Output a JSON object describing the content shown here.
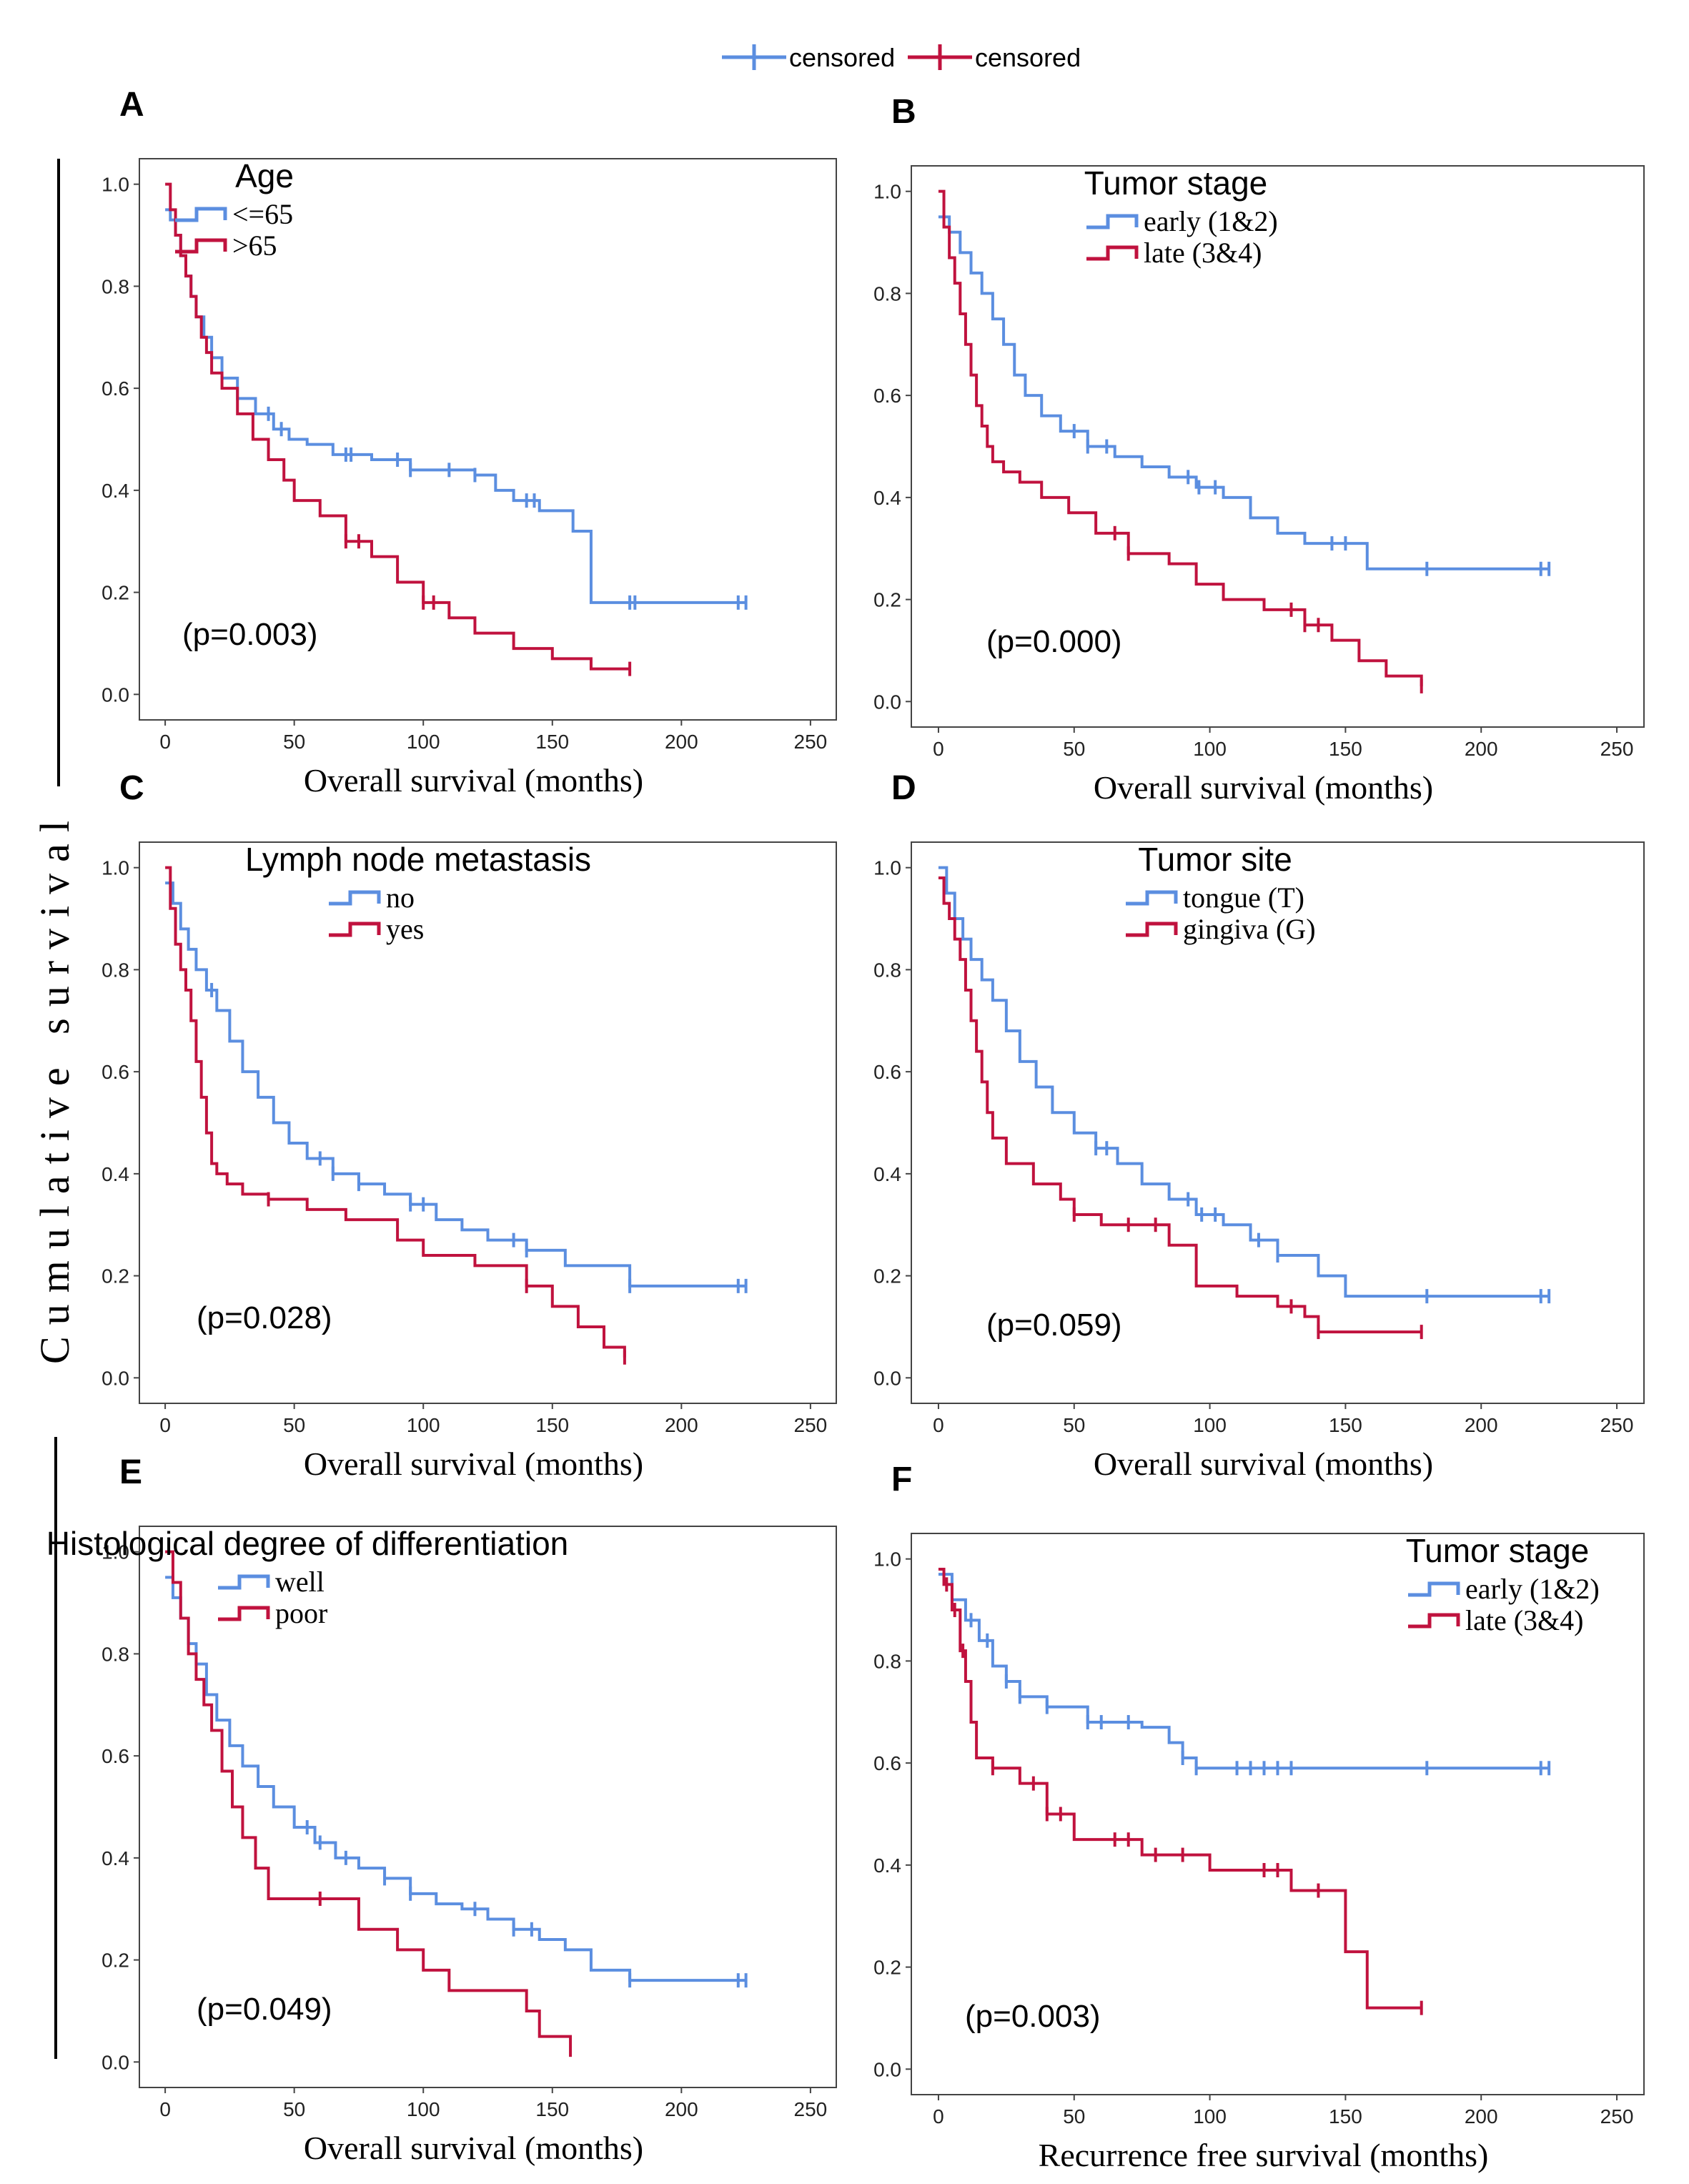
{
  "top_legend": {
    "items": [
      {
        "label": "censored",
        "color": "#5b8ee0"
      },
      {
        "label": "censored",
        "color": "#c0123e"
      }
    ]
  },
  "y_axis_label": "Cumulative survival",
  "colors": {
    "series1": "#5b8ee0",
    "series2": "#c0123e"
  },
  "chart_data": [
    {
      "panel": "A",
      "type": "line",
      "subtype": "kaplan-meier",
      "legend_title": "Age",
      "xlabel": "Overall survival (months)",
      "ylabel": "Cumulative survival",
      "xlim": [
        -10,
        260
      ],
      "ylim": [
        -0.05,
        1.05
      ],
      "xticks": [
        0,
        50,
        100,
        150,
        200,
        250
      ],
      "yticks": [
        0.0,
        0.2,
        0.4,
        0.6,
        0.8,
        1.0
      ],
      "annotation": "(p=0.003)",
      "series": [
        {
          "name": "<=65",
          "x": [
            0,
            2,
            4,
            6,
            8,
            10,
            12,
            15,
            18,
            22,
            28,
            35,
            42,
            48,
            55,
            65,
            80,
            95,
            110,
            120,
            128,
            135,
            145,
            158,
            165,
            180,
            225
          ],
          "y": [
            0.95,
            0.93,
            0.9,
            0.86,
            0.82,
            0.78,
            0.74,
            0.7,
            0.66,
            0.62,
            0.58,
            0.55,
            0.52,
            0.5,
            0.49,
            0.47,
            0.46,
            0.44,
            0.44,
            0.43,
            0.4,
            0.38,
            0.36,
            0.32,
            0.18,
            0.18,
            0.18
          ],
          "censored_x": [
            40,
            45,
            70,
            72,
            90,
            95,
            110,
            120,
            140,
            143,
            180,
            182,
            222,
            225
          ]
        },
        {
          "name": ">65",
          "x": [
            0,
            2,
            4,
            6,
            8,
            10,
            12,
            14,
            16,
            18,
            22,
            28,
            34,
            40,
            46,
            50,
            60,
            70,
            80,
            90,
            100,
            110,
            120,
            135,
            150,
            165,
            180
          ],
          "y": [
            1.0,
            0.95,
            0.9,
            0.86,
            0.82,
            0.78,
            0.74,
            0.7,
            0.67,
            0.63,
            0.6,
            0.55,
            0.5,
            0.46,
            0.42,
            0.38,
            0.35,
            0.3,
            0.27,
            0.22,
            0.18,
            0.15,
            0.12,
            0.09,
            0.07,
            0.05,
            0.05
          ],
          "censored_x": [
            70,
            75,
            100,
            104,
            180
          ]
        }
      ]
    },
    {
      "panel": "B",
      "type": "line",
      "subtype": "kaplan-meier",
      "legend_title": "Tumor stage",
      "xlabel": "Overall survival (months)",
      "ylabel": "Cumulative survival",
      "xlim": [
        -10,
        260
      ],
      "ylim": [
        -0.05,
        1.05
      ],
      "xticks": [
        0,
        50,
        100,
        150,
        200,
        250
      ],
      "yticks": [
        0.0,
        0.2,
        0.4,
        0.6,
        0.8,
        1.0
      ],
      "annotation": "(p=0.000)",
      "series": [
        {
          "name": "early (1&2)",
          "x": [
            0,
            4,
            8,
            12,
            16,
            20,
            24,
            28,
            32,
            38,
            45,
            55,
            65,
            75,
            85,
            95,
            105,
            115,
            125,
            135,
            145,
            158,
            180,
            225
          ],
          "y": [
            0.95,
            0.92,
            0.88,
            0.84,
            0.8,
            0.75,
            0.7,
            0.64,
            0.6,
            0.56,
            0.53,
            0.5,
            0.48,
            0.46,
            0.44,
            0.42,
            0.4,
            0.36,
            0.33,
            0.31,
            0.31,
            0.26,
            0.26,
            0.26
          ],
          "censored_x": [
            50,
            55,
            62,
            92,
            96,
            102,
            145,
            150,
            180,
            222,
            225
          ]
        },
        {
          "name": "late (3&4)",
          "x": [
            0,
            2,
            4,
            6,
            8,
            10,
            12,
            14,
            16,
            18,
            20,
            24,
            30,
            38,
            48,
            58,
            70,
            85,
            95,
            105,
            120,
            135,
            145,
            155,
            165,
            178
          ],
          "y": [
            1.0,
            0.93,
            0.87,
            0.82,
            0.76,
            0.7,
            0.64,
            0.58,
            0.54,
            0.5,
            0.47,
            0.45,
            0.43,
            0.4,
            0.37,
            0.33,
            0.29,
            0.27,
            0.23,
            0.2,
            0.18,
            0.15,
            0.12,
            0.08,
            0.05,
            0.03
          ],
          "censored_x": [
            65,
            70,
            130,
            135,
            140,
            178
          ]
        }
      ]
    },
    {
      "panel": "C",
      "type": "line",
      "subtype": "kaplan-meier",
      "legend_title": "Lymph node metastasis",
      "xlabel": "Overall survival (months)",
      "ylabel": "Cumulative survival",
      "xlim": [
        -10,
        260
      ],
      "ylim": [
        -0.05,
        1.05
      ],
      "xticks": [
        0,
        50,
        100,
        150,
        200,
        250
      ],
      "yticks": [
        0.0,
        0.2,
        0.4,
        0.6,
        0.8,
        1.0
      ],
      "annotation": "(p=0.028)",
      "series": [
        {
          "name": "no",
          "x": [
            0,
            3,
            6,
            9,
            12,
            16,
            20,
            25,
            30,
            36,
            42,
            48,
            55,
            65,
            75,
            85,
            95,
            105,
            115,
            125,
            140,
            155,
            180,
            225
          ],
          "y": [
            0.97,
            0.93,
            0.88,
            0.84,
            0.8,
            0.76,
            0.72,
            0.66,
            0.6,
            0.55,
            0.5,
            0.46,
            0.43,
            0.4,
            0.38,
            0.36,
            0.34,
            0.31,
            0.29,
            0.27,
            0.25,
            0.22,
            0.18,
            0.18
          ],
          "censored_x": [
            18,
            60,
            65,
            75,
            95,
            100,
            135,
            140,
            180,
            222,
            225
          ]
        },
        {
          "name": "yes",
          "x": [
            0,
            2,
            4,
            6,
            8,
            10,
            12,
            14,
            16,
            18,
            20,
            24,
            30,
            40,
            55,
            70,
            90,
            100,
            120,
            140,
            150,
            160,
            170,
            178
          ],
          "y": [
            1.0,
            0.92,
            0.85,
            0.8,
            0.76,
            0.7,
            0.62,
            0.55,
            0.48,
            0.42,
            0.4,
            0.38,
            0.36,
            0.35,
            0.33,
            0.31,
            0.27,
            0.24,
            0.22,
            0.18,
            0.14,
            0.1,
            0.06,
            0.04
          ],
          "censored_x": [
            40,
            140,
            178
          ]
        }
      ]
    },
    {
      "panel": "D",
      "type": "line",
      "subtype": "kaplan-meier",
      "legend_title": "Tumor site",
      "xlabel": "Overall survival (months)",
      "ylabel": "Cumulative survival",
      "xlim": [
        -10,
        260
      ],
      "ylim": [
        -0.05,
        1.05
      ],
      "xticks": [
        0,
        50,
        100,
        150,
        200,
        250
      ],
      "yticks": [
        0.0,
        0.2,
        0.4,
        0.6,
        0.8,
        1.0
      ],
      "annotation": "(p=0.059)",
      "series": [
        {
          "name": "tongue (T)",
          "x": [
            0,
            3,
            6,
            9,
            12,
            16,
            20,
            25,
            30,
            36,
            42,
            50,
            58,
            66,
            75,
            85,
            95,
            105,
            115,
            125,
            140,
            150,
            180,
            225
          ],
          "y": [
            1.0,
            0.95,
            0.9,
            0.86,
            0.82,
            0.78,
            0.74,
            0.68,
            0.62,
            0.57,
            0.52,
            0.48,
            0.45,
            0.42,
            0.38,
            0.35,
            0.32,
            0.3,
            0.27,
            0.24,
            0.2,
            0.16,
            0.16,
            0.16
          ],
          "censored_x": [
            58,
            62,
            92,
            97,
            102,
            118,
            125,
            180,
            222,
            225
          ]
        },
        {
          "name": "gingiva (G)",
          "x": [
            0,
            2,
            4,
            6,
            8,
            10,
            12,
            14,
            16,
            18,
            20,
            25,
            35,
            45,
            50,
            60,
            75,
            85,
            95,
            110,
            125,
            135,
            140,
            160,
            178
          ],
          "y": [
            0.98,
            0.93,
            0.9,
            0.86,
            0.82,
            0.76,
            0.7,
            0.64,
            0.58,
            0.52,
            0.47,
            0.42,
            0.38,
            0.35,
            0.32,
            0.3,
            0.3,
            0.26,
            0.18,
            0.16,
            0.14,
            0.12,
            0.09,
            0.09,
            0.09
          ],
          "censored_x": [
            50,
            70,
            80,
            130,
            140,
            178
          ]
        }
      ]
    },
    {
      "panel": "E",
      "type": "line",
      "subtype": "kaplan-meier",
      "legend_title": "Histological degree of differentiation",
      "xlabel": "Overall survival (months)",
      "ylabel": "Cumulative survival",
      "xlim": [
        -10,
        260
      ],
      "ylim": [
        -0.05,
        1.05
      ],
      "xticks": [
        0,
        50,
        100,
        150,
        200,
        250
      ],
      "yticks": [
        0.0,
        0.2,
        0.4,
        0.6,
        0.8,
        1.0
      ],
      "annotation": "(p=0.049)",
      "series": [
        {
          "name": "well",
          "x": [
            0,
            3,
            6,
            9,
            12,
            16,
            20,
            25,
            30,
            36,
            42,
            50,
            58,
            66,
            75,
            85,
            95,
            105,
            115,
            125,
            135,
            145,
            155,
            165,
            180,
            225
          ],
          "y": [
            0.95,
            0.91,
            0.87,
            0.82,
            0.78,
            0.72,
            0.67,
            0.62,
            0.58,
            0.54,
            0.5,
            0.46,
            0.43,
            0.4,
            0.38,
            0.36,
            0.33,
            0.31,
            0.3,
            0.28,
            0.26,
            0.24,
            0.22,
            0.18,
            0.16,
            0.16
          ],
          "censored_x": [
            55,
            60,
            70,
            85,
            95,
            120,
            135,
            142,
            180,
            222,
            225
          ]
        },
        {
          "name": "poor",
          "x": [
            0,
            3,
            6,
            9,
            12,
            15,
            18,
            22,
            26,
            30,
            35,
            40,
            60,
            75,
            90,
            100,
            110,
            120,
            140,
            145,
            157
          ],
          "y": [
            1.0,
            0.94,
            0.87,
            0.8,
            0.75,
            0.7,
            0.65,
            0.57,
            0.5,
            0.44,
            0.38,
            0.32,
            0.32,
            0.26,
            0.22,
            0.18,
            0.14,
            0.14,
            0.1,
            0.05,
            0.01
          ],
          "censored_x": [
            60
          ]
        }
      ]
    },
    {
      "panel": "F",
      "type": "line",
      "subtype": "kaplan-meier",
      "legend_title": "Tumor stage",
      "xlabel": "Recurrence free survival (months)",
      "ylabel": "Cumulative survival",
      "xlim": [
        -10,
        260
      ],
      "ylim": [
        -0.05,
        1.05
      ],
      "xticks": [
        0,
        50,
        100,
        150,
        200,
        250
      ],
      "yticks": [
        0.0,
        0.2,
        0.4,
        0.6,
        0.8,
        1.0
      ],
      "annotation": "(p=0.003)",
      "series": [
        {
          "name": "early (1&2)",
          "x": [
            0,
            5,
            10,
            15,
            20,
            25,
            30,
            40,
            55,
            75,
            85,
            90,
            95,
            180,
            225
          ],
          "y": [
            0.97,
            0.92,
            0.88,
            0.84,
            0.79,
            0.76,
            0.73,
            0.71,
            0.68,
            0.67,
            0.64,
            0.61,
            0.59,
            0.59,
            0.59
          ],
          "censored_x": [
            12,
            18,
            25,
            30,
            40,
            55,
            60,
            70,
            90,
            95,
            110,
            115,
            120,
            125,
            130,
            180,
            222,
            225
          ]
        },
        {
          "name": "late (3&4)",
          "x": [
            0,
            2,
            5,
            8,
            10,
            12,
            14,
            20,
            30,
            40,
            50,
            75,
            100,
            130,
            140,
            145,
            150,
            158,
            178
          ],
          "y": [
            0.98,
            0.95,
            0.9,
            0.82,
            0.76,
            0.68,
            0.61,
            0.59,
            0.56,
            0.5,
            0.45,
            0.42,
            0.39,
            0.35,
            0.35,
            0.35,
            0.23,
            0.12,
            0.12
          ],
          "censored_x": [
            3,
            6,
            9,
            20,
            35,
            40,
            45,
            65,
            70,
            80,
            90,
            120,
            125,
            140,
            178
          ]
        }
      ]
    }
  ]
}
